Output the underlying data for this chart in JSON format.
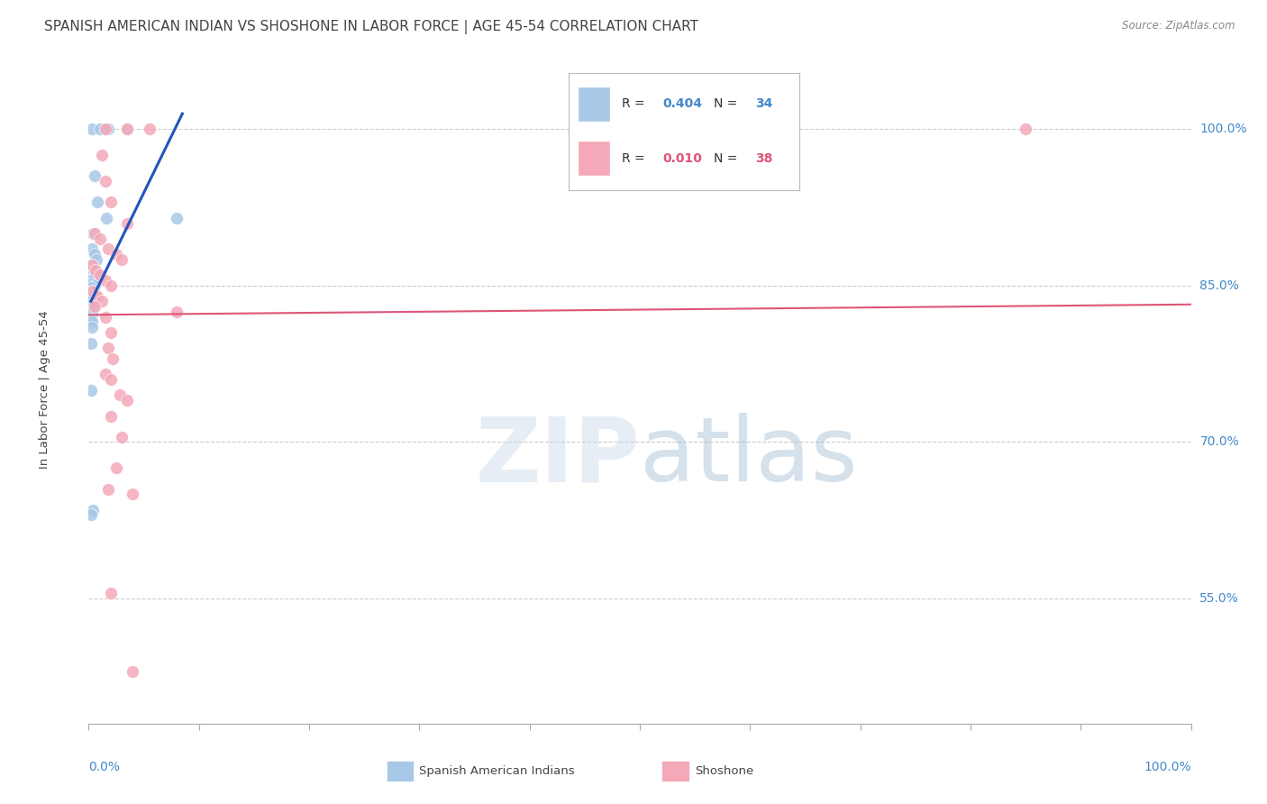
{
  "title": "SPANISH AMERICAN INDIAN VS SHOSHONE IN LABOR FORCE | AGE 45-54 CORRELATION CHART",
  "source": "Source: ZipAtlas.com",
  "ylabel": "In Labor Force | Age 45-54",
  "yticks": [
    55.0,
    70.0,
    85.0,
    100.0
  ],
  "ytick_labels": [
    "55.0%",
    "70.0%",
    "85.0%",
    "100.0%"
  ],
  "xlim": [
    0.0,
    100.0
  ],
  "ylim": [
    43.0,
    107.0
  ],
  "legend_label1": "Spanish American Indians",
  "legend_label2": "Shoshone",
  "R1": 0.404,
  "N1": 34,
  "R2": 0.01,
  "N2": 38,
  "color_blue": "#a8c8e8",
  "color_pink": "#f4a8b8",
  "line_blue": "#2255bb",
  "line_pink": "#dd5577",
  "blue_points": [
    [
      0.3,
      100.0
    ],
    [
      1.0,
      100.0
    ],
    [
      1.8,
      100.0
    ],
    [
      3.5,
      100.0
    ],
    [
      0.5,
      95.5
    ],
    [
      0.8,
      93.0
    ],
    [
      1.6,
      91.5
    ],
    [
      8.0,
      91.5
    ],
    [
      0.4,
      90.0
    ],
    [
      0.3,
      88.5
    ],
    [
      0.5,
      88.0
    ],
    [
      0.7,
      87.5
    ],
    [
      0.2,
      87.0
    ],
    [
      0.4,
      86.5
    ],
    [
      0.6,
      86.0
    ],
    [
      0.2,
      85.5
    ],
    [
      0.3,
      85.2
    ],
    [
      0.5,
      85.0
    ],
    [
      0.2,
      84.8
    ],
    [
      0.3,
      84.5
    ],
    [
      0.5,
      84.2
    ],
    [
      0.2,
      84.0
    ],
    [
      0.4,
      83.8
    ],
    [
      0.2,
      83.2
    ],
    [
      0.4,
      83.0
    ],
    [
      0.2,
      82.5
    ],
    [
      0.3,
      82.2
    ],
    [
      0.2,
      81.8
    ],
    [
      0.3,
      81.5
    ],
    [
      0.3,
      81.0
    ],
    [
      0.2,
      79.5
    ],
    [
      0.2,
      75.0
    ],
    [
      0.4,
      63.5
    ],
    [
      0.2,
      63.0
    ]
  ],
  "pink_points": [
    [
      1.5,
      100.0
    ],
    [
      3.5,
      100.0
    ],
    [
      5.5,
      100.0
    ],
    [
      85.0,
      100.0
    ],
    [
      1.2,
      97.5
    ],
    [
      1.5,
      95.0
    ],
    [
      2.0,
      93.0
    ],
    [
      3.5,
      91.0
    ],
    [
      0.5,
      90.0
    ],
    [
      1.0,
      89.5
    ],
    [
      1.8,
      88.5
    ],
    [
      2.5,
      88.0
    ],
    [
      3.0,
      87.5
    ],
    [
      0.3,
      87.0
    ],
    [
      0.6,
      86.5
    ],
    [
      1.0,
      86.0
    ],
    [
      1.5,
      85.5
    ],
    [
      2.0,
      85.0
    ],
    [
      0.4,
      84.5
    ],
    [
      0.8,
      84.0
    ],
    [
      1.2,
      83.5
    ],
    [
      0.5,
      83.0
    ],
    [
      1.5,
      82.0
    ],
    [
      2.0,
      80.5
    ],
    [
      1.8,
      79.0
    ],
    [
      2.2,
      78.0
    ],
    [
      1.5,
      76.5
    ],
    [
      2.0,
      76.0
    ],
    [
      2.8,
      74.5
    ],
    [
      3.5,
      74.0
    ],
    [
      2.0,
      72.5
    ],
    [
      3.0,
      70.5
    ],
    [
      2.5,
      67.5
    ],
    [
      1.8,
      65.5
    ],
    [
      4.0,
      65.0
    ],
    [
      2.0,
      55.5
    ],
    [
      4.0,
      48.0
    ],
    [
      8.0,
      82.5
    ]
  ],
  "blue_line_x": [
    0.2,
    8.5
  ],
  "blue_line_y": [
    83.5,
    101.5
  ],
  "pink_line_x": [
    0.0,
    100.0
  ],
  "pink_line_y": [
    82.2,
    83.2
  ],
  "background_color": "#ffffff",
  "grid_color": "#cccccc",
  "title_color": "#444444",
  "axis_color": "#4488cc",
  "watermark_color": "#ddeeff",
  "watermark_alpha": 0.6
}
